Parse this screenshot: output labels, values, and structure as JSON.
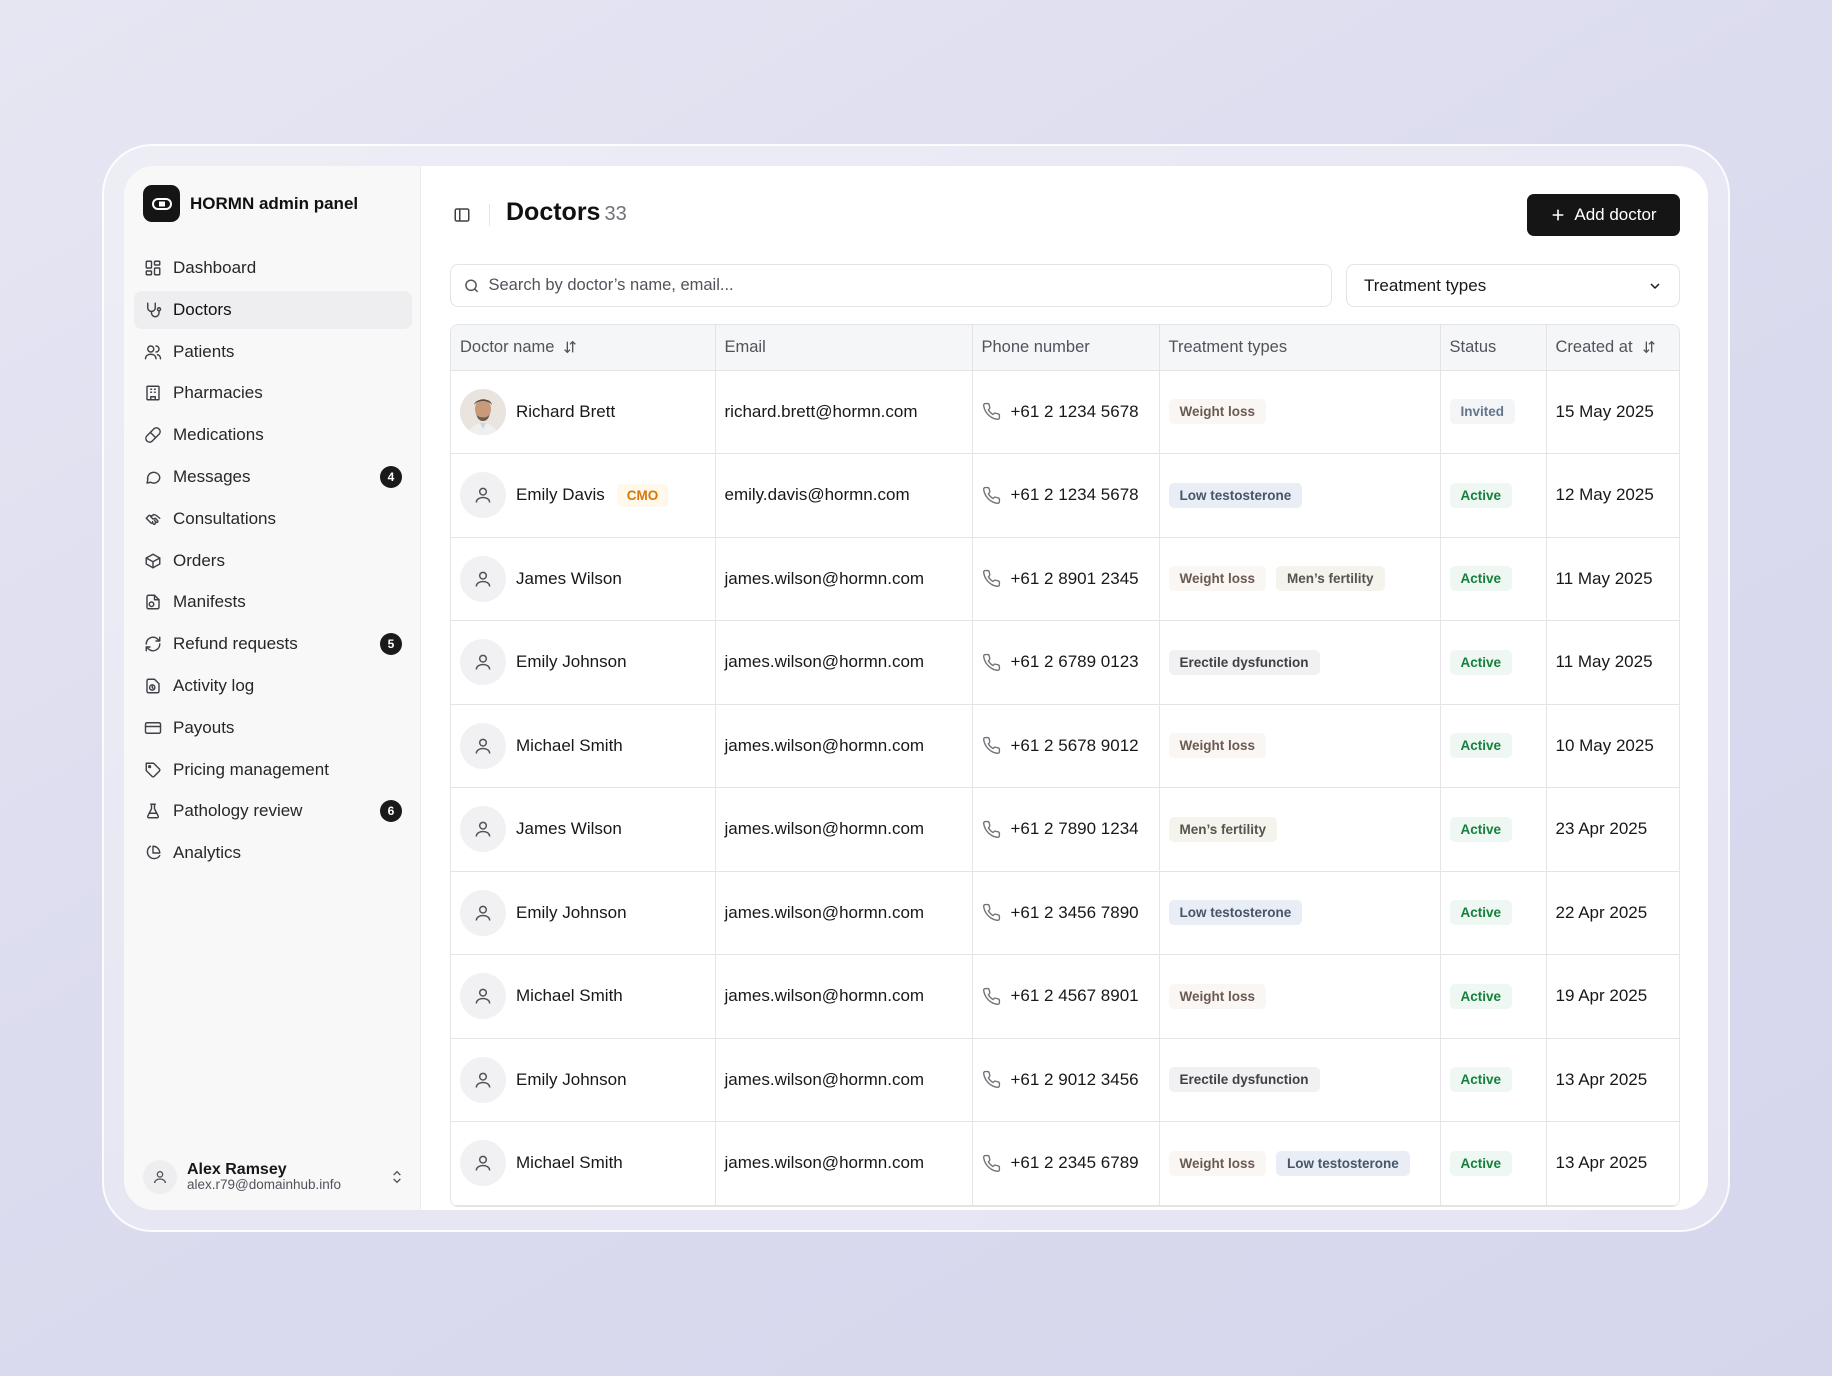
{
  "brand": {
    "name": "HORMN admin panel"
  },
  "sidebar": {
    "items": [
      {
        "label": "Dashboard",
        "icon": "dashboard-icon",
        "badge": "",
        "active": false
      },
      {
        "label": "Doctors",
        "icon": "stethoscope-icon",
        "badge": "",
        "active": true
      },
      {
        "label": "Patients",
        "icon": "users-icon",
        "badge": "",
        "active": false
      },
      {
        "label": "Pharmacies",
        "icon": "building-icon",
        "badge": "",
        "active": false
      },
      {
        "label": "Medications",
        "icon": "pill-icon",
        "badge": "",
        "active": false
      },
      {
        "label": "Messages",
        "icon": "message-icon",
        "badge": "4",
        "active": false
      },
      {
        "label": "Consultations",
        "icon": "handshake-icon",
        "badge": "",
        "active": false
      },
      {
        "label": "Orders",
        "icon": "package-icon",
        "badge": "",
        "active": false
      },
      {
        "label": "Manifests",
        "icon": "file-icon",
        "badge": "",
        "active": false
      },
      {
        "label": "Refund requests",
        "icon": "refresh-icon",
        "badge": "5",
        "active": false
      },
      {
        "label": "Activity log",
        "icon": "activity-icon",
        "badge": "",
        "active": false
      },
      {
        "label": "Payouts",
        "icon": "credit-card-icon",
        "badge": "",
        "active": false
      },
      {
        "label": "Pricing management",
        "icon": "tag-icon",
        "badge": "",
        "active": false
      },
      {
        "label": "Pathology review",
        "icon": "flask-icon",
        "badge": "6",
        "active": false
      },
      {
        "label": "Analytics",
        "icon": "pie-chart-icon",
        "badge": "",
        "active": false
      }
    ]
  },
  "user": {
    "name": "Alex Ramsey",
    "email": "alex.r79@domainhub.info"
  },
  "header": {
    "title": "Doctors",
    "count": "33",
    "add_label": "Add doctor"
  },
  "search": {
    "placeholder": "Search by doctor’s name, email..."
  },
  "filter": {
    "label": "Treatment types"
  },
  "table": {
    "headers": [
      "Doctor name",
      "Email",
      "Phone number",
      "Treatment types",
      "Status",
      "Created at"
    ],
    "rows": [
      {
        "name": "Richard Brett",
        "photo": true,
        "role": "",
        "email": "richard.brett@hormn.com",
        "phone": "+61 2 1234 5678",
        "treatments": [
          "Weight loss"
        ],
        "status": "Invited",
        "created": "15 May 2025"
      },
      {
        "name": "Emily Davis",
        "photo": false,
        "role": "CMO",
        "email": "emily.davis@hormn.com",
        "phone": "+61 2 1234 5678",
        "treatments": [
          "Low testosterone"
        ],
        "status": "Active",
        "created": "12 May 2025"
      },
      {
        "name": "James Wilson",
        "photo": false,
        "role": "",
        "email": "james.wilson@hormn.com",
        "phone": "+61 2 8901 2345",
        "treatments": [
          "Weight loss",
          "Men’s fertility"
        ],
        "status": "Active",
        "created": "11 May 2025"
      },
      {
        "name": "Emily Johnson",
        "photo": false,
        "role": "",
        "email": "james.wilson@hormn.com",
        "phone": "+61 2 6789 0123",
        "treatments": [
          "Erectile dysfunction"
        ],
        "status": "Active",
        "created": "11 May 2025"
      },
      {
        "name": "Michael Smith",
        "photo": false,
        "role": "",
        "email": "james.wilson@hormn.com",
        "phone": "+61 2 5678 9012",
        "treatments": [
          "Weight loss"
        ],
        "status": "Active",
        "created": "10 May 2025"
      },
      {
        "name": "James Wilson",
        "photo": false,
        "role": "",
        "email": "james.wilson@hormn.com",
        "phone": "+61 2 7890 1234",
        "treatments": [
          "Men’s fertility"
        ],
        "status": "Active",
        "created": "23 Apr 2025"
      },
      {
        "name": "Emily Johnson",
        "photo": false,
        "role": "",
        "email": "james.wilson@hormn.com",
        "phone": "+61 2 3456 7890",
        "treatments": [
          "Low testosterone"
        ],
        "status": "Active",
        "created": "22 Apr 2025"
      },
      {
        "name": "Michael Smith",
        "photo": false,
        "role": "",
        "email": "james.wilson@hormn.com",
        "phone": "+61 2 4567 8901",
        "treatments": [
          "Weight loss"
        ],
        "status": "Active",
        "created": "19 Apr 2025"
      },
      {
        "name": "Emily Johnson",
        "photo": false,
        "role": "",
        "email": "james.wilson@hormn.com",
        "phone": "+61 2 9012 3456",
        "treatments": [
          "Erectile dysfunction"
        ],
        "status": "Active",
        "created": "13 Apr 2025"
      },
      {
        "name": "Michael Smith",
        "photo": false,
        "role": "",
        "email": "james.wilson@hormn.com",
        "phone": "+61 2 2345 6789",
        "treatments": [
          "Weight loss",
          "Low testosterone"
        ],
        "status": "Active",
        "created": "13 Apr 2025"
      }
    ]
  }
}
